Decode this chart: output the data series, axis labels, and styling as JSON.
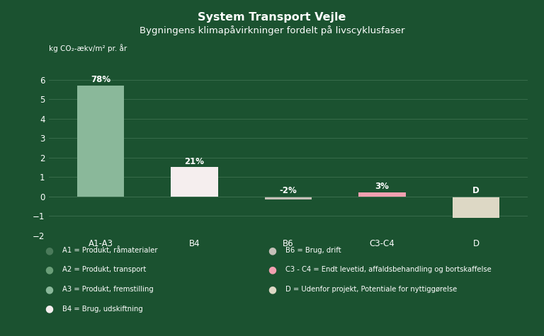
{
  "title": "System Transport Vejle",
  "subtitle": "Bygningens klimapåvirkninger fordelt på livscyklusfaser",
  "ylabel": "kg CO₂-ækv/m² pr. år",
  "background_color": "#1b5230",
  "categories": [
    "A1-A3",
    "B4",
    "B6",
    "C3-C4",
    "D"
  ],
  "values": [
    5.7,
    1.5,
    -0.15,
    0.22,
    -1.1
  ],
  "bar_colors": [
    "#8ab89a",
    "#f5eeee",
    "#c5c0b8",
    "#f2a0b0",
    "#ddd8c5"
  ],
  "labels": [
    "78%",
    "21%",
    "-2%",
    "3%",
    "D"
  ],
  "ylim": [
    -2,
    7
  ],
  "yticks": [
    -2,
    -1,
    0,
    1,
    2,
    3,
    4,
    5,
    6
  ],
  "grid_color": "#3d7050",
  "text_color": "#ffffff",
  "legend_items_left": [
    {
      "label": "A1 = Produkt, råmaterialer",
      "color": "#4a7a5a"
    },
    {
      "label": "A2 = Produkt, transport",
      "color": "#6a9e78"
    },
    {
      "label": "A3 = Produkt, fremstilling",
      "color": "#8ab89a"
    },
    {
      "label": "B4 = Brug, udskiftning",
      "color": "#f5eeee"
    }
  ],
  "legend_items_right": [
    {
      "label": "B6 = Brug, drift",
      "color": "#c5c0b8"
    },
    {
      "label": "C3 - C4 = Endt levetid, affaldsbehandling og bortskaffelse",
      "color": "#f2a0b0"
    },
    {
      "label": "D = Udenfor projekt, Potentiale for nyttiggørelse",
      "color": "#ddd8c5"
    }
  ]
}
